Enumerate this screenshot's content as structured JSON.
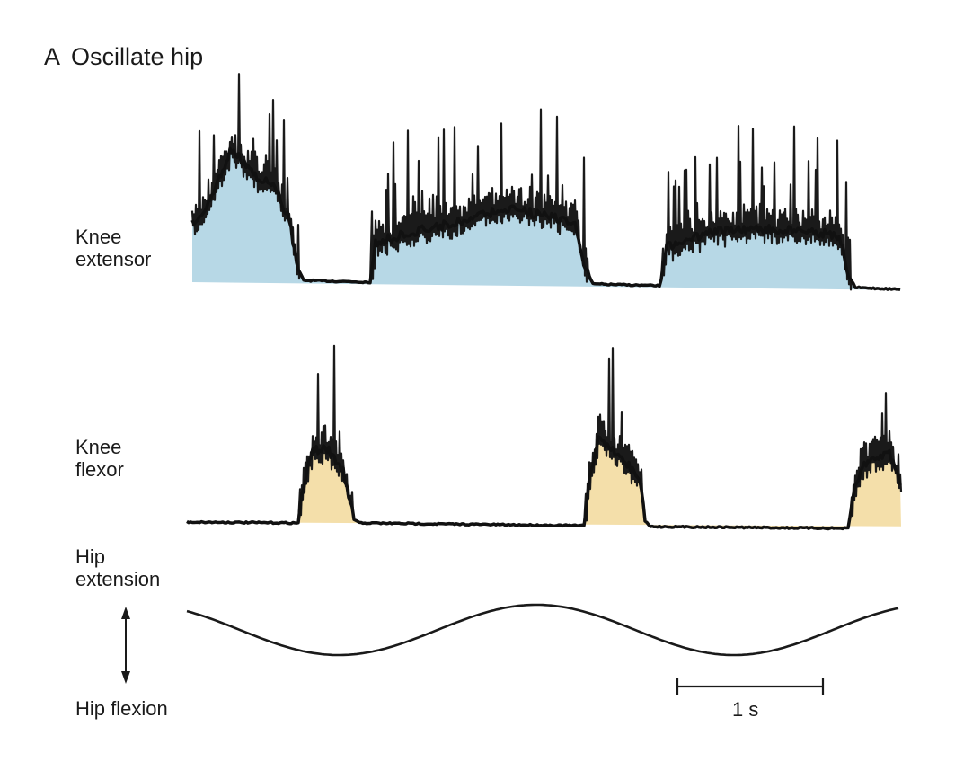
{
  "panel": {
    "letter": "A",
    "title": "Oscillate hip"
  },
  "traces": [
    {
      "label_lines": [
        "Knee",
        "extensor"
      ],
      "fill_color": "#b7d8e6"
    },
    {
      "label_lines": [
        "Knee",
        "flexor"
      ],
      "fill_color": "#f4dfaa"
    }
  ],
  "hip": {
    "label_top_lines": [
      "Hip",
      "extension"
    ],
    "label_bottom": "Hip flexion"
  },
  "scale_bar": {
    "label": "1 s"
  },
  "colors": {
    "ink": "#1a1a1a",
    "extensor_fill": "#b7d8e6",
    "flexor_fill": "#f4dfaa"
  }
}
